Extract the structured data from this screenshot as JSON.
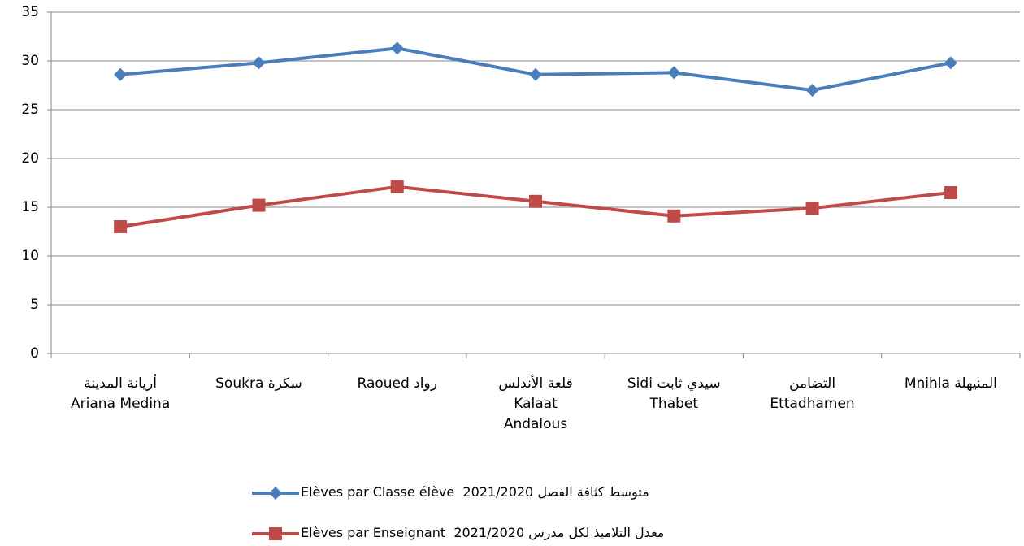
{
  "chart_data": {
    "type": "line",
    "categories": [
      "أريانة المدينة\nAriana Medina",
      "Soukra سكرة",
      "Raoued رواد",
      "قلعة الأندلس\nKalaat\nAndalous",
      "Sidi سيدي ثابت\nThabet",
      "التضامن\nEttadhamen",
      "Mnihla المنيهلة"
    ],
    "series": [
      {
        "name": "Elèves par Classe élève  2021/2020 متوسط كثافة الفصل",
        "color": "#4a7ebb",
        "marker": "diamond",
        "values": [
          28.6,
          29.8,
          31.3,
          28.6,
          28.8,
          27.0,
          29.8
        ]
      },
      {
        "name": "Elèves par Enseignant  2021/2020 معدل التلاميذ لكل مدرس",
        "color": "#be4b48",
        "marker": "square",
        "values": [
          13.0,
          15.2,
          17.1,
          15.6,
          14.1,
          14.9,
          16.5
        ]
      }
    ],
    "ylim": [
      0,
      35
    ],
    "yticks": [
      0,
      5,
      10,
      15,
      20,
      25,
      30,
      35
    ],
    "grid": true,
    "legend": "bottom"
  }
}
